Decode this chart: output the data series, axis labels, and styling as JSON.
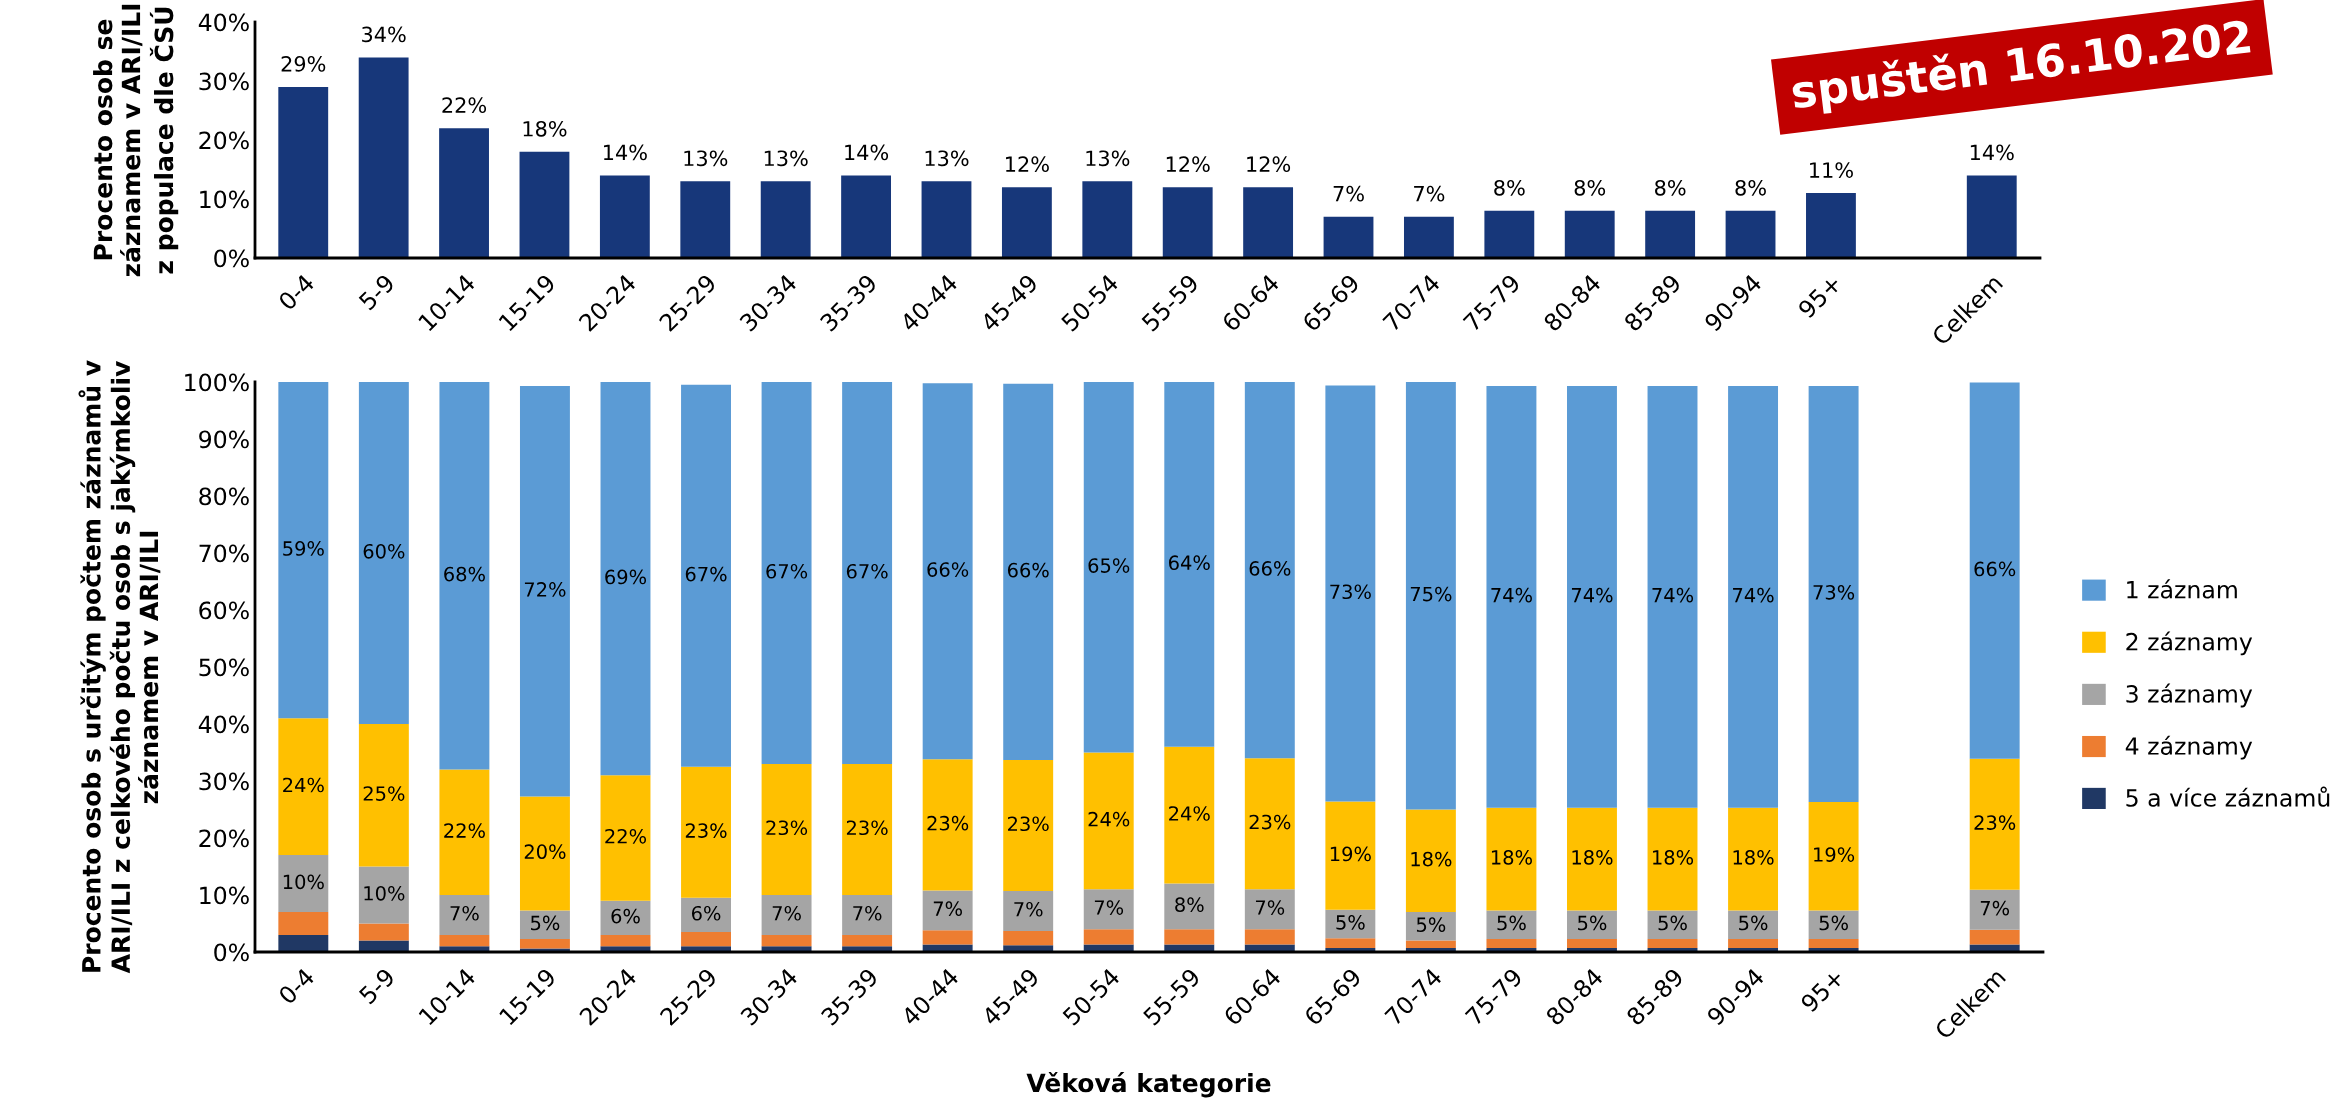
{
  "chart_data": [
    {
      "type": "bar",
      "ylabel": "Procento osob se\nzáznamem v ARI/ILI\nz populace dle ČSÚ",
      "annotations": [
        "spuštěn 16.10.202"
      ],
      "categories": [
        "0-4",
        "5-9",
        "10-14",
        "15-19",
        "20-24",
        "25-29",
        "30-34",
        "35-39",
        "40-44",
        "45-49",
        "50-54",
        "55-59",
        "60-64",
        "65-69",
        "70-74",
        "75-79",
        "80-84",
        "85-89",
        "90-94",
        "95+",
        null,
        "Celkem"
      ],
      "series": [
        {
          "color": "#17377a",
          "values": [
            29,
            34,
            22,
            18,
            14,
            13,
            13,
            14,
            13,
            12,
            13,
            12,
            12,
            7,
            7,
            8,
            8,
            8,
            8,
            11,
            null,
            14
          ],
          "value_labels": [
            "29%",
            "34%",
            "22%",
            "18%",
            "14%",
            "13%",
            "13%",
            "14%",
            "13%",
            "12%",
            "13%",
            "12%",
            "12%",
            "7%",
            "7%",
            "8%",
            "8%",
            "8%",
            "8%",
            "11%",
            null,
            "14%"
          ]
        }
      ],
      "ylim": [
        0,
        40
      ],
      "yticks": [
        {
          "value": 0,
          "label": "0%"
        },
        {
          "value": 10,
          "label": "10%"
        },
        {
          "value": 20,
          "label": "20%"
        },
        {
          "value": 30,
          "label": "30%"
        },
        {
          "value": 40,
          "label": "40%"
        }
      ],
      "grid": false,
      "legend": false
    },
    {
      "type": "bar",
      "stacked": true,
      "xlabel": "Věková kategorie",
      "ylabel": "Procento osob s určitým počtem záznamů v\nARI/ILI z celkového počtu osob s jakýmkoliv\nzáznamem v ARI/ILI",
      "categories": [
        "0-4",
        "5-9",
        "10-14",
        "15-19",
        "20-24",
        "25-29",
        "30-34",
        "35-39",
        "40-44",
        "45-49",
        "50-54",
        "55-59",
        "60-64",
        "65-69",
        "70-74",
        "75-79",
        "80-84",
        "85-89",
        "90-94",
        "95+",
        null,
        "Celkem"
      ],
      "series": [
        {
          "name": "5 a více záznamů",
          "color": "#203864",
          "values": [
            3,
            2,
            1,
            0.6,
            1,
            1,
            1,
            1,
            1.3,
            1.2,
            1.3,
            1.3,
            1.3,
            0.7,
            0.7,
            0.7,
            0.7,
            0.7,
            0.7,
            0.7,
            null,
            1.3
          ]
        },
        {
          "name": "4 záznamy",
          "color": "#ed7d31",
          "values": [
            4,
            3,
            2,
            1.7,
            2,
            2.5,
            2,
            2,
            2.5,
            2.5,
            2.7,
            2.7,
            2.7,
            1.7,
            1.3,
            1.6,
            1.6,
            1.6,
            1.6,
            1.6,
            null,
            2.6
          ]
        },
        {
          "name": "3 záznamy",
          "color": "#a5a5a5",
          "values": [
            10,
            10,
            7,
            5,
            6,
            6,
            7,
            7,
            7,
            7,
            7,
            8,
            7,
            5,
            5,
            5,
            5,
            5,
            5,
            5,
            null,
            7
          ],
          "value_labels": [
            "10%",
            "10%",
            "7%",
            "5%",
            "6%",
            "6%",
            "7%",
            "7%",
            "7%",
            "7%",
            "7%",
            "8%",
            "7%",
            "5%",
            "5%",
            "5%",
            "5%",
            "5%",
            "5%",
            "5%",
            null,
            "7%"
          ]
        },
        {
          "name": "2 záznamy",
          "color": "#ffc000",
          "values": [
            24,
            25,
            22,
            20,
            22,
            23,
            23,
            23,
            23,
            23,
            24,
            24,
            23,
            19,
            18,
            18,
            18,
            18,
            18,
            19,
            null,
            23
          ],
          "value_labels": [
            "24%",
            "25%",
            "22%",
            "20%",
            "22%",
            "23%",
            "23%",
            "23%",
            "23%",
            "23%",
            "24%",
            "24%",
            "23%",
            "19%",
            "18%",
            "18%",
            "18%",
            "18%",
            "18%",
            "19%",
            null,
            "23%"
          ]
        },
        {
          "name": "1 záznam",
          "color": "#5b9bd5",
          "values": [
            59,
            60,
            68,
            72,
            69,
            67,
            67,
            67,
            66,
            66,
            65,
            64,
            66,
            73,
            75,
            74,
            74,
            74,
            74,
            73,
            null,
            66
          ],
          "value_labels": [
            "59%",
            "60%",
            "68%",
            "72%",
            "69%",
            "67%",
            "67%",
            "67%",
            "66%",
            "66%",
            "65%",
            "64%",
            "66%",
            "73%",
            "75%",
            "74%",
            "74%",
            "74%",
            "74%",
            "73%",
            null,
            "66%"
          ]
        }
      ],
      "ylim": [
        0,
        100
      ],
      "yticks": [
        {
          "value": 0,
          "label": "0%"
        },
        {
          "value": 10,
          "label": "10%"
        },
        {
          "value": 20,
          "label": "20%"
        },
        {
          "value": 30,
          "label": "30%"
        },
        {
          "value": 40,
          "label": "40%"
        },
        {
          "value": 50,
          "label": "50%"
        },
        {
          "value": 60,
          "label": "60%"
        },
        {
          "value": 70,
          "label": "70%"
        },
        {
          "value": 80,
          "label": "80%"
        },
        {
          "value": 90,
          "label": "90%"
        },
        {
          "value": 100,
          "label": "100%"
        }
      ],
      "grid": false,
      "legend": "right"
    }
  ]
}
